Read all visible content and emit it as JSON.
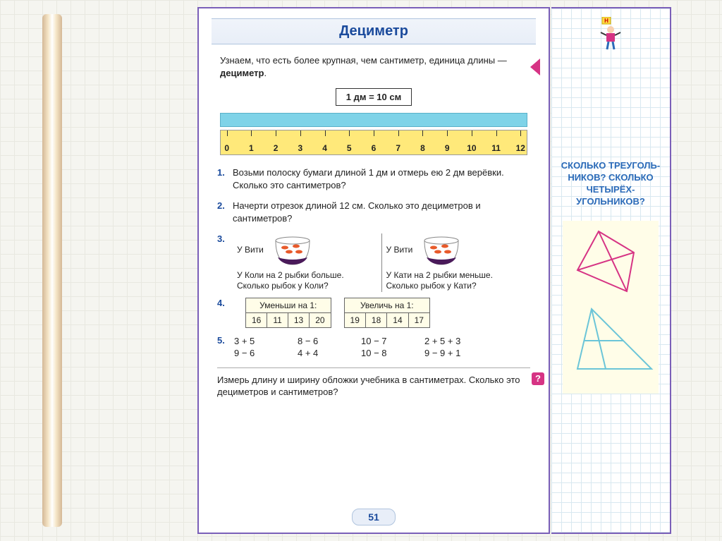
{
  "title": "Дециметр",
  "intro_part1": "Узнаем, что есть более крупная, чем сантиметр, единица длины — ",
  "intro_bold": "дециметр",
  "intro_part2": ".",
  "formula": "1 дм = 10 см",
  "ruler": {
    "min": 0,
    "max": 12
  },
  "tasks": {
    "t1": {
      "num": "1.",
      "text": "Возьми полоску бумаги длиной 1 дм и отмерь ею 2 дм верёвки. Сколько это сантиметров?"
    },
    "t2": {
      "num": "2.",
      "text": "Начерти отрезок длиной 12 см. Сколько это дециметров и сантиметров?"
    },
    "t3": {
      "num": "3.",
      "left_top": "У Вити",
      "left_text": "У Коли на 2 рыбки больше. Сколько рыбок у Коли?",
      "right_top": "У Вити",
      "right_text": "У Кати на 2 рыбки меньше. Сколько рыбок у Кати?"
    },
    "t4": {
      "num": "4.",
      "dec_title": "Уменьши на 1:",
      "dec_vals": [
        "16",
        "11",
        "13",
        "20"
      ],
      "inc_title": "Увеличь на 1:",
      "inc_vals": [
        "19",
        "18",
        "14",
        "17"
      ]
    },
    "t5": {
      "num": "5.",
      "cols": [
        [
          "3 + 5",
          "9 − 6"
        ],
        [
          "8 − 6",
          "4 + 4"
        ],
        [
          "10 − 7",
          "10 − 8"
        ],
        [
          "2 + 5 + 3",
          "9 − 9 + 1"
        ]
      ]
    },
    "footer": "Измерь длину и ширину обложки учебника в сантиметрах. Сколько это дециметров и сантиметров?",
    "q_badge": "?"
  },
  "page_number": "51",
  "sidebar": {
    "kid_badge": "Н",
    "question": "СКОЛЬКО ТРЕУГОЛЬ-НИКОВ? СКОЛЬКО ЧЕТЫРЁХ-УГОЛЬНИКОВ?"
  },
  "colors": {
    "purple": "#7a5fb8",
    "title_blue": "#1a4a9c",
    "pink": "#d63384",
    "ruler_yellow": "#ffe97a",
    "strip_cyan": "#7fd3e8",
    "table_bg": "#fffde8",
    "side_blue": "#2a6ab8",
    "shape_red": "#d63384",
    "shape_cyan": "#6bc5d8"
  }
}
